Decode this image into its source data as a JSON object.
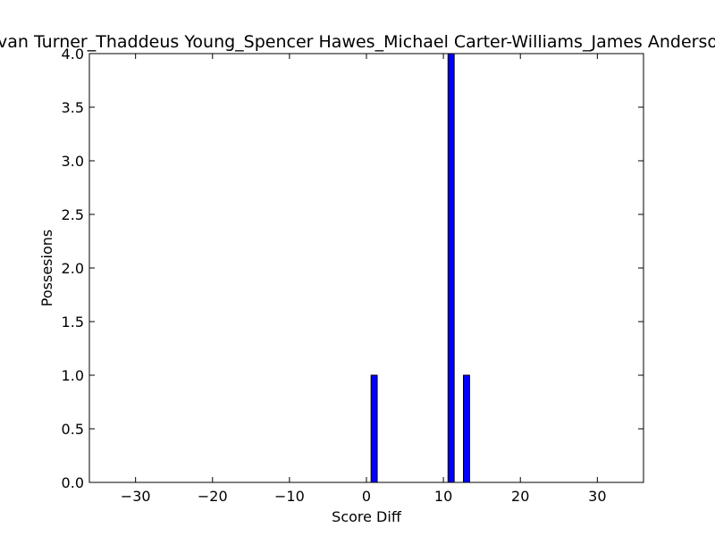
{
  "chart_data": {
    "type": "bar",
    "title": "Evan Turner_Thaddeus Young_Spencer Hawes_Michael Carter-Williams_James Anderson",
    "xlabel": "Score Diff",
    "ylabel": "Possesions",
    "xlim": [
      -36,
      36
    ],
    "ylim": [
      0,
      4.0
    ],
    "x_ticks": [
      -30,
      -20,
      -10,
      0,
      10,
      20,
      30
    ],
    "x_tick_labels": [
      "−30",
      "−20",
      "−10",
      "0",
      "10",
      "20",
      "30"
    ],
    "y_ticks": [
      0.0,
      0.5,
      1.0,
      1.5,
      2.0,
      2.5,
      3.0,
      3.5,
      4.0
    ],
    "y_tick_labels": [
      "0.0",
      "0.5",
      "1.0",
      "1.5",
      "2.0",
      "2.5",
      "3.0",
      "3.5",
      "4.0"
    ],
    "bar_width": 0.8,
    "bar_color": "#0000ff",
    "bars": [
      {
        "x": -35,
        "value": 0
      },
      {
        "x": -34,
        "value": 0
      },
      {
        "x": -33,
        "value": 0
      },
      {
        "x": -32,
        "value": 0
      },
      {
        "x": -31,
        "value": 0
      },
      {
        "x": -30,
        "value": 0
      },
      {
        "x": -29,
        "value": 0
      },
      {
        "x": -28,
        "value": 0
      },
      {
        "x": -27,
        "value": 0
      },
      {
        "x": -26,
        "value": 0
      },
      {
        "x": -25,
        "value": 0
      },
      {
        "x": -24,
        "value": 0
      },
      {
        "x": -23,
        "value": 0
      },
      {
        "x": -22,
        "value": 0
      },
      {
        "x": -21,
        "value": 0
      },
      {
        "x": -20,
        "value": 0
      },
      {
        "x": -19,
        "value": 0
      },
      {
        "x": -18,
        "value": 0
      },
      {
        "x": -17,
        "value": 0
      },
      {
        "x": -16,
        "value": 0
      },
      {
        "x": -15,
        "value": 0
      },
      {
        "x": -14,
        "value": 0
      },
      {
        "x": -13,
        "value": 0
      },
      {
        "x": -12,
        "value": 0
      },
      {
        "x": -11,
        "value": 0
      },
      {
        "x": -10,
        "value": 0
      },
      {
        "x": -9,
        "value": 0
      },
      {
        "x": -8,
        "value": 0
      },
      {
        "x": -7,
        "value": 0
      },
      {
        "x": -6,
        "value": 0
      },
      {
        "x": -5,
        "value": 0
      },
      {
        "x": -4,
        "value": 0
      },
      {
        "x": -3,
        "value": 0
      },
      {
        "x": -2,
        "value": 0
      },
      {
        "x": -1,
        "value": 0
      },
      {
        "x": 0,
        "value": 0
      },
      {
        "x": 1,
        "value": 1
      },
      {
        "x": 2,
        "value": 0
      },
      {
        "x": 3,
        "value": 0
      },
      {
        "x": 4,
        "value": 0
      },
      {
        "x": 5,
        "value": 0
      },
      {
        "x": 6,
        "value": 0
      },
      {
        "x": 7,
        "value": 0
      },
      {
        "x": 8,
        "value": 0
      },
      {
        "x": 9,
        "value": 0
      },
      {
        "x": 10,
        "value": 0
      },
      {
        "x": 11,
        "value": 4
      },
      {
        "x": 12,
        "value": 0
      },
      {
        "x": 13,
        "value": 1
      },
      {
        "x": 14,
        "value": 0
      },
      {
        "x": 15,
        "value": 0
      },
      {
        "x": 16,
        "value": 0
      },
      {
        "x": 17,
        "value": 0
      },
      {
        "x": 18,
        "value": 0
      },
      {
        "x": 19,
        "value": 0
      },
      {
        "x": 20,
        "value": 0
      },
      {
        "x": 21,
        "value": 0
      },
      {
        "x": 22,
        "value": 0
      },
      {
        "x": 23,
        "value": 0
      },
      {
        "x": 24,
        "value": 0
      },
      {
        "x": 25,
        "value": 0
      },
      {
        "x": 26,
        "value": 0
      },
      {
        "x": 27,
        "value": 0
      },
      {
        "x": 28,
        "value": 0
      },
      {
        "x": 29,
        "value": 0
      },
      {
        "x": 30,
        "value": 0
      },
      {
        "x": 31,
        "value": 0
      },
      {
        "x": 32,
        "value": 0
      },
      {
        "x": 33,
        "value": 0
      },
      {
        "x": 34,
        "value": 0
      },
      {
        "x": 35,
        "value": 0
      }
    ],
    "grid": false
  }
}
